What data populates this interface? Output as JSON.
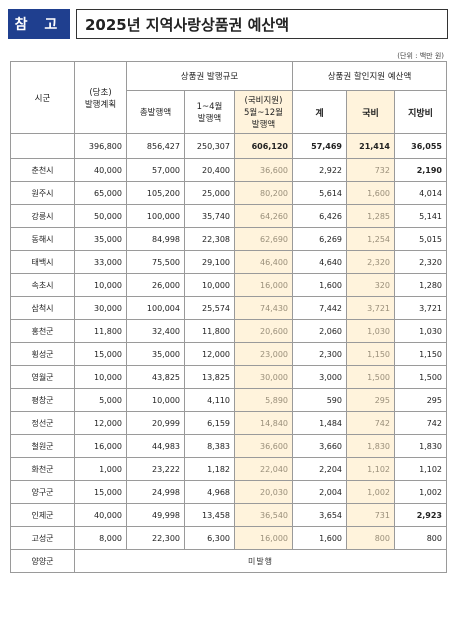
{
  "header": {
    "tag": "참 고",
    "title": "2025년 지역사랑상품권 예산액"
  },
  "unit": "(단위 : 백만 원)",
  "columns": {
    "region": "시군",
    "initial": "(당초)\n발행계획",
    "issue_group": "상품권 발행규모",
    "total_issue": "총발행액",
    "jan_apr": "1~4월\n발행액",
    "may_dec": "(국비지원)\n5월~12월\n발행액",
    "support_group": "상품권 할인지원 예산액",
    "sum": "계",
    "national": "국비",
    "local": "지방비"
  },
  "total": {
    "region": "",
    "initial": "396,800",
    "total_issue": "856,427",
    "jan_apr": "250,307",
    "may_dec": "606,120",
    "sum": "57,469",
    "national": "21,414",
    "local": "36,055"
  },
  "rows": [
    {
      "region": "춘천시",
      "initial": "40,000",
      "total_issue": "57,000",
      "jan_apr": "20,400",
      "may_dec": "36,600",
      "sum": "2,922",
      "national": "732",
      "local": "2,190",
      "local_bold": true
    },
    {
      "region": "원주시",
      "initial": "65,000",
      "total_issue": "105,200",
      "jan_apr": "25,000",
      "may_dec": "80,200",
      "sum": "5,614",
      "national": "1,600",
      "local": "4,014"
    },
    {
      "region": "강릉시",
      "initial": "50,000",
      "total_issue": "100,000",
      "jan_apr": "35,740",
      "may_dec": "64,260",
      "sum": "6,426",
      "national": "1,285",
      "local": "5,141"
    },
    {
      "region": "동해시",
      "initial": "35,000",
      "total_issue": "84,998",
      "jan_apr": "22,308",
      "may_dec": "62,690",
      "sum": "6,269",
      "national": "1,254",
      "local": "5,015"
    },
    {
      "region": "태백시",
      "initial": "33,000",
      "total_issue": "75,500",
      "jan_apr": "29,100",
      "may_dec": "46,400",
      "sum": "4,640",
      "national": "2,320",
      "local": "2,320"
    },
    {
      "region": "속초시",
      "initial": "10,000",
      "total_issue": "26,000",
      "jan_apr": "10,000",
      "may_dec": "16,000",
      "sum": "1,600",
      "national": "320",
      "local": "1,280"
    },
    {
      "region": "삼척시",
      "initial": "30,000",
      "total_issue": "100,004",
      "jan_apr": "25,574",
      "may_dec": "74,430",
      "sum": "7,442",
      "national": "3,721",
      "local": "3,721"
    },
    {
      "region": "홍천군",
      "initial": "11,800",
      "total_issue": "32,400",
      "jan_apr": "11,800",
      "may_dec": "20,600",
      "sum": "2,060",
      "national": "1,030",
      "local": "1,030"
    },
    {
      "region": "횡성군",
      "initial": "15,000",
      "total_issue": "35,000",
      "jan_apr": "12,000",
      "may_dec": "23,000",
      "sum": "2,300",
      "national": "1,150",
      "local": "1,150"
    },
    {
      "region": "영월군",
      "initial": "10,000",
      "total_issue": "43,825",
      "jan_apr": "13,825",
      "may_dec": "30,000",
      "sum": "3,000",
      "national": "1,500",
      "local": "1,500"
    },
    {
      "region": "평창군",
      "initial": "5,000",
      "total_issue": "10,000",
      "jan_apr": "4,110",
      "may_dec": "5,890",
      "sum": "590",
      "national": "295",
      "local": "295"
    },
    {
      "region": "정선군",
      "initial": "12,000",
      "total_issue": "20,999",
      "jan_apr": "6,159",
      "may_dec": "14,840",
      "sum": "1,484",
      "national": "742",
      "local": "742"
    },
    {
      "region": "철원군",
      "initial": "16,000",
      "total_issue": "44,983",
      "jan_apr": "8,383",
      "may_dec": "36,600",
      "sum": "3,660",
      "national": "1,830",
      "local": "1,830"
    },
    {
      "region": "화천군",
      "initial": "1,000",
      "total_issue": "23,222",
      "jan_apr": "1,182",
      "may_dec": "22,040",
      "sum": "2,204",
      "national": "1,102",
      "local": "1,102"
    },
    {
      "region": "양구군",
      "initial": "15,000",
      "total_issue": "24,998",
      "jan_apr": "4,968",
      "may_dec": "20,030",
      "sum": "2,004",
      "national": "1,002",
      "local": "1,002"
    },
    {
      "region": "인제군",
      "initial": "40,000",
      "total_issue": "49,998",
      "jan_apr": "13,458",
      "may_dec": "36,540",
      "sum": "3,654",
      "national": "731",
      "local": "2,923",
      "local_bold": true
    },
    {
      "region": "고성군",
      "initial": "8,000",
      "total_issue": "22,300",
      "jan_apr": "6,300",
      "may_dec": "16,000",
      "sum": "1,600",
      "national": "800",
      "local": "800"
    }
  ],
  "last_row": {
    "region": "양양군",
    "note": "미발행"
  }
}
